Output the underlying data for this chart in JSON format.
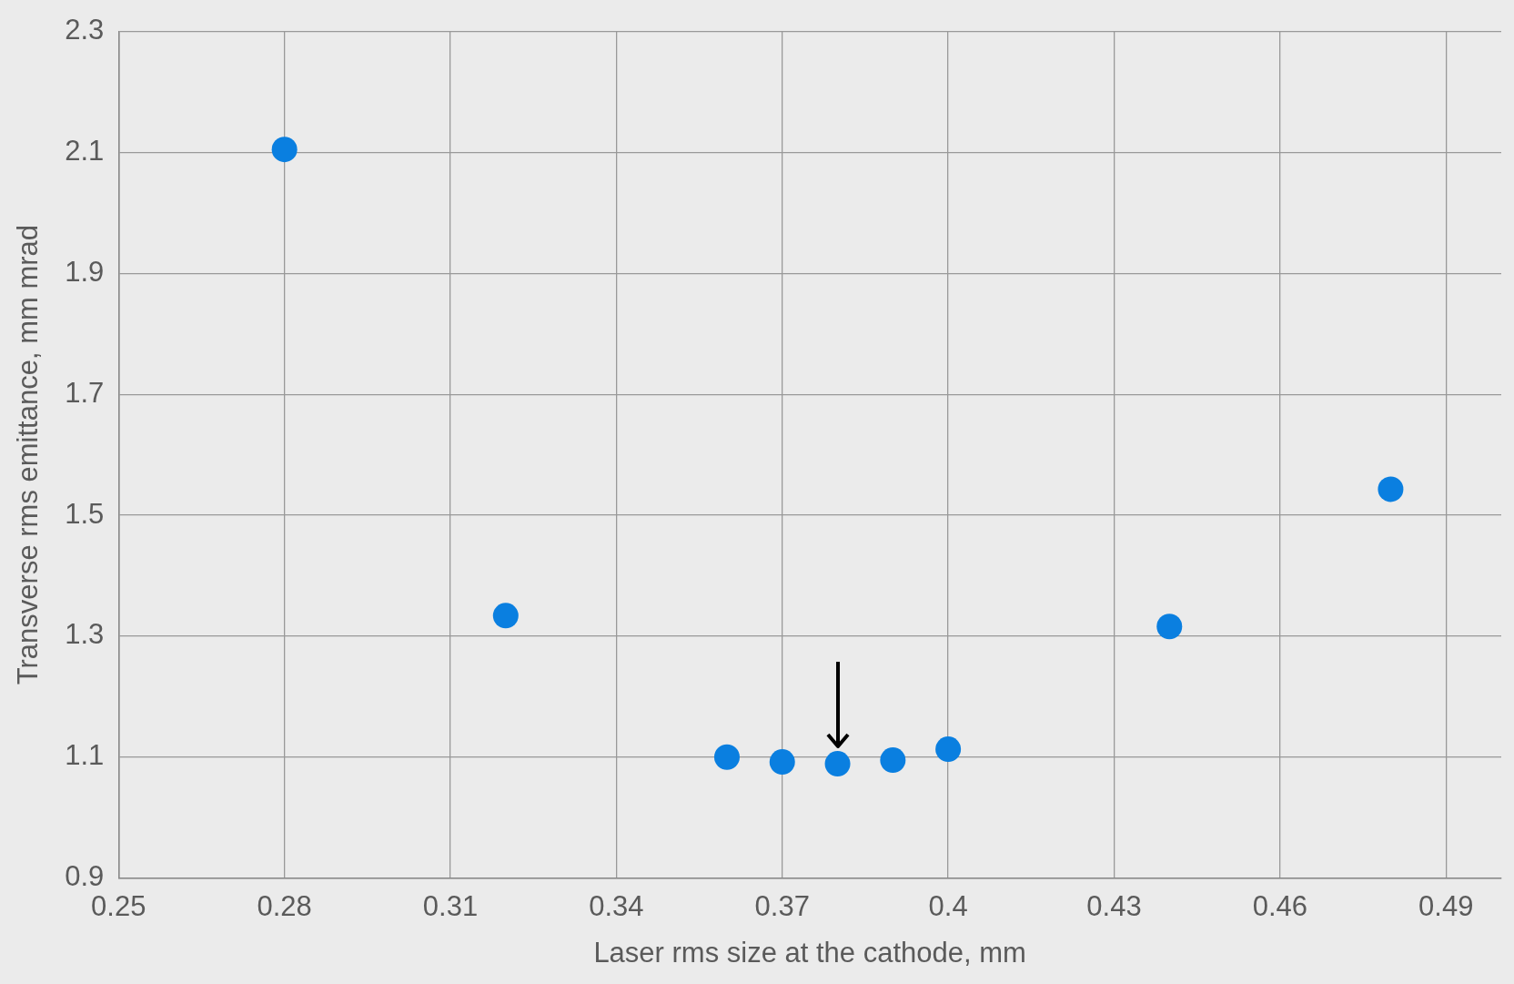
{
  "chart_data": {
    "type": "scatter",
    "xlabel": "Laser rms size at the cathode, mm",
    "ylabel": "Transverse rms emittance, mm mrad",
    "x": [
      0.28,
      0.32,
      0.36,
      0.37,
      0.38,
      0.39,
      0.4,
      0.44,
      0.48
    ],
    "series": [
      {
        "color": "#0a7fe0",
        "values": [
          2.105,
          1.334,
          1.1,
          1.092,
          1.089,
          1.095,
          1.113,
          1.316,
          1.543
        ]
      }
    ],
    "xlim": [
      0.25,
      0.5
    ],
    "xticks": [
      0.25,
      0.28,
      0.31,
      0.34,
      0.37,
      0.4,
      0.43,
      0.46,
      0.49
    ],
    "ylim": [
      0.9,
      2.3
    ],
    "yticks": [
      0.9,
      1.1,
      1.3,
      1.5,
      1.7,
      1.9,
      2.1,
      2.3
    ],
    "grid": true,
    "legend": false,
    "marker": "circle"
  }
}
